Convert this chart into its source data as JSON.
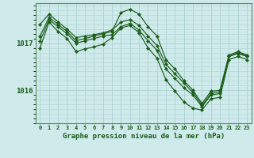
{
  "title": "Graphe pression niveau de la mer (hPa)",
  "bg_color": "#ceeaea",
  "grid_color": "#b0d4d4",
  "line_color": "#1a5c1a",
  "xlim": [
    -0.5,
    23.5
  ],
  "ylim": [
    1015.3,
    1017.85
  ],
  "yticks": [
    1016,
    1017
  ],
  "xticks": [
    0,
    1,
    2,
    3,
    4,
    5,
    6,
    7,
    8,
    9,
    10,
    11,
    12,
    13,
    14,
    15,
    16,
    17,
    18,
    19,
    20,
    21,
    22,
    23
  ],
  "series": [
    [
      1017.15,
      1017.55,
      1017.4,
      1017.25,
      1017.05,
      1017.1,
      1017.15,
      1017.2,
      1017.25,
      1017.65,
      1017.72,
      1017.62,
      1017.35,
      1017.15,
      1016.65,
      1016.45,
      1016.2,
      1016.0,
      1015.72,
      1015.98,
      1016.0,
      1016.75,
      1016.82,
      1016.75
    ],
    [
      1017.05,
      1017.5,
      1017.35,
      1017.2,
      1017.0,
      1017.05,
      1017.1,
      1017.15,
      1017.18,
      1017.35,
      1017.42,
      1017.28,
      1017.05,
      1016.85,
      1016.45,
      1016.25,
      1016.05,
      1015.9,
      1015.65,
      1015.9,
      1015.93,
      1016.72,
      1016.78,
      1016.72
    ],
    [
      1017.4,
      1017.62,
      1017.45,
      1017.3,
      1017.12,
      1017.15,
      1017.18,
      1017.22,
      1017.28,
      1017.45,
      1017.5,
      1017.38,
      1017.15,
      1016.95,
      1016.55,
      1016.35,
      1016.15,
      1015.95,
      1015.68,
      1015.93,
      1015.97,
      1016.72,
      1016.8,
      1016.73
    ],
    [
      1016.9,
      1017.45,
      1017.25,
      1017.1,
      1016.82,
      1016.88,
      1016.92,
      1016.98,
      1017.12,
      1017.32,
      1017.38,
      1017.22,
      1016.9,
      1016.68,
      1016.22,
      1015.98,
      1015.75,
      1015.62,
      1015.58,
      1015.82,
      1015.85,
      1016.65,
      1016.72,
      1016.65
    ]
  ]
}
